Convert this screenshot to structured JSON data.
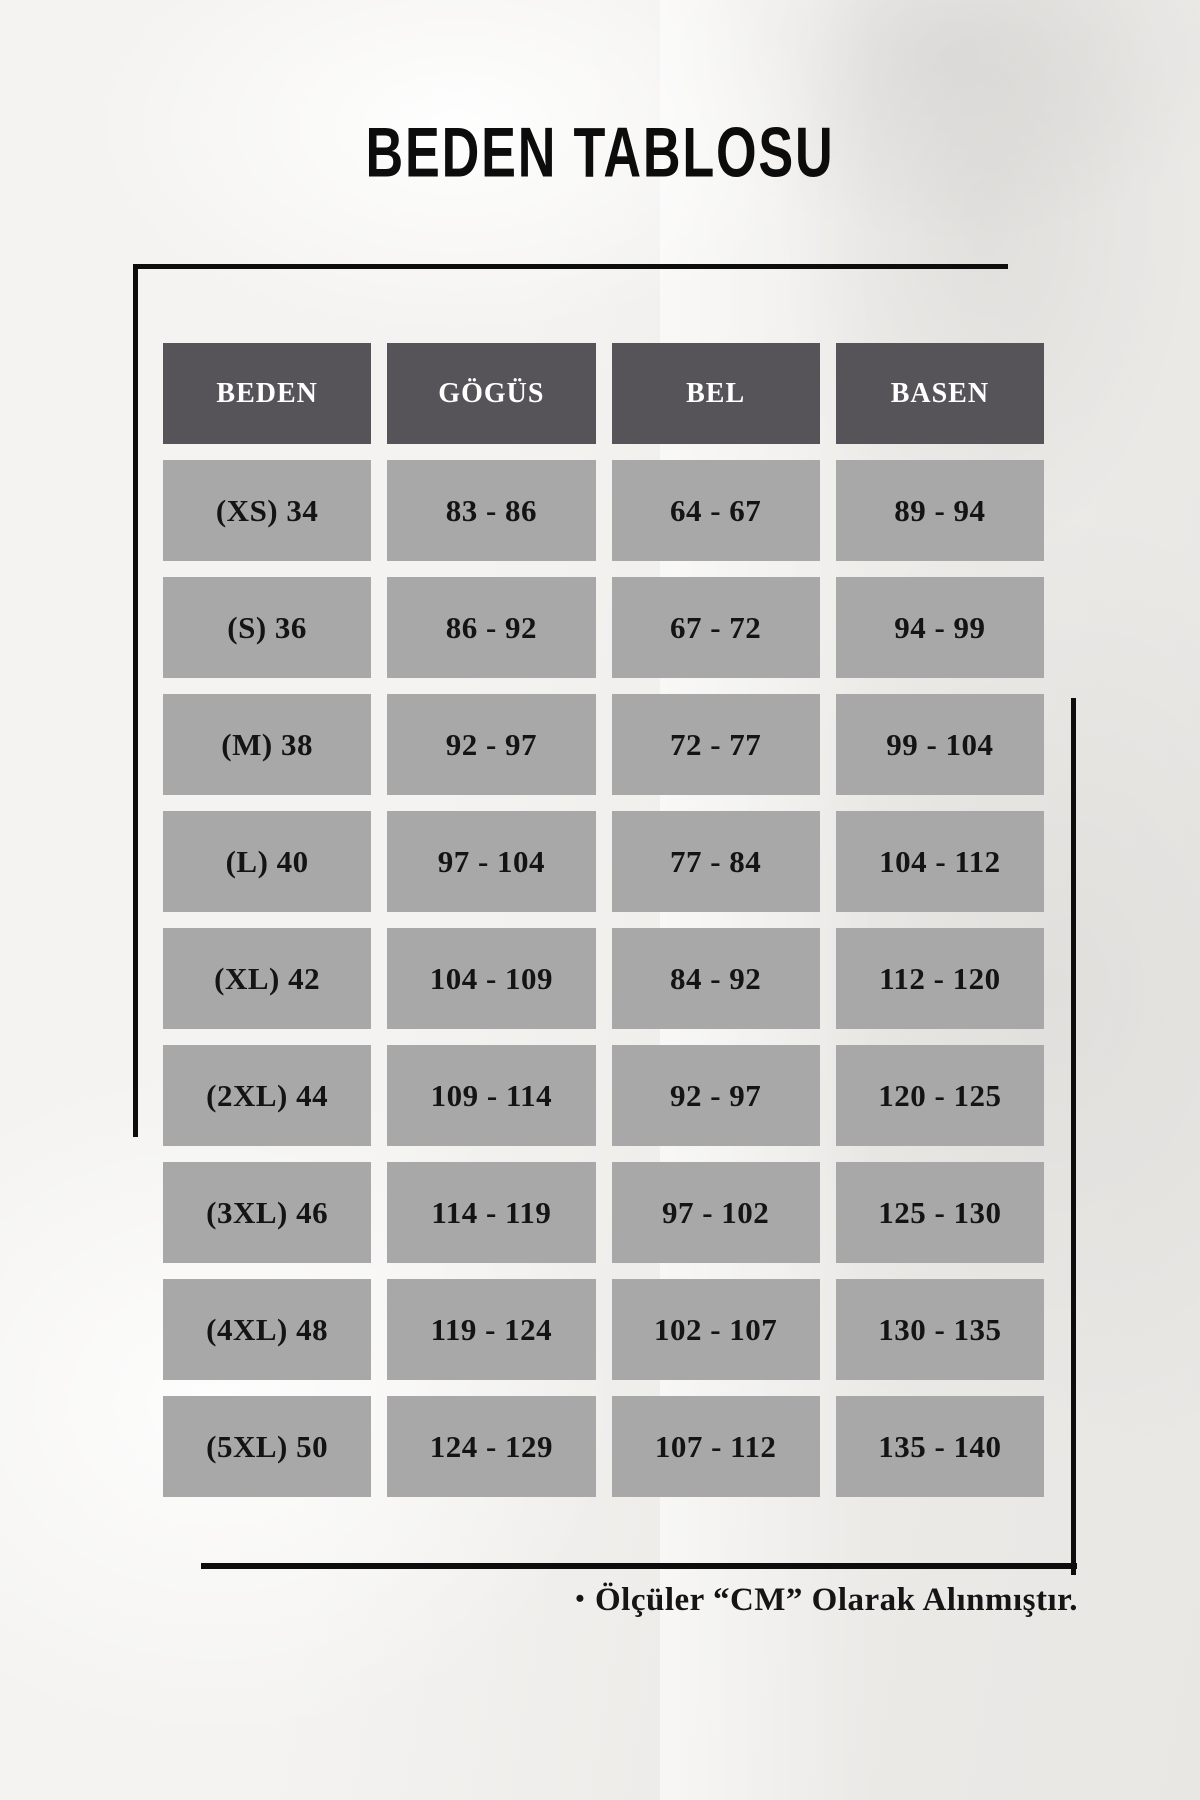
{
  "page": {
    "title": "BEDEN TABLOSU"
  },
  "table": {
    "headers": [
      "BEDEN",
      "GÖGÜS",
      "BEL",
      "BASEN"
    ],
    "rows": [
      [
        "(XS) 34",
        "83 - 86",
        "64 - 67",
        "89 - 94"
      ],
      [
        "(S) 36",
        "86 - 92",
        "67 - 72",
        "94 - 99"
      ],
      [
        "(M) 38",
        "92 - 97",
        "72 - 77",
        "99 - 104"
      ],
      [
        "(L) 40",
        "97 - 104",
        "77 - 84",
        "104 - 112"
      ],
      [
        "(XL) 42",
        "104 - 109",
        "84 - 92",
        "112 - 120"
      ],
      [
        "(2XL) 44",
        "109 - 114",
        "92 - 97",
        "120 - 125"
      ],
      [
        "(3XL) 46",
        "114 - 119",
        "97 - 102",
        "125 - 130"
      ],
      [
        "(4XL) 48",
        "119 - 124",
        "102 - 107",
        "130 - 135"
      ],
      [
        "(5XL) 50",
        "124 - 129",
        "107 - 112",
        "135 - 140"
      ]
    ]
  },
  "footer": {
    "bullet": "•",
    "text": "Ölçüler “CM” Olarak Alınmıştır."
  },
  "colors": {
    "header_bg": "#565458",
    "header_text": "#ffffff",
    "cell_bg": "#a9a8a8",
    "cell_text": "#141414",
    "line": "#0d0d0d"
  }
}
